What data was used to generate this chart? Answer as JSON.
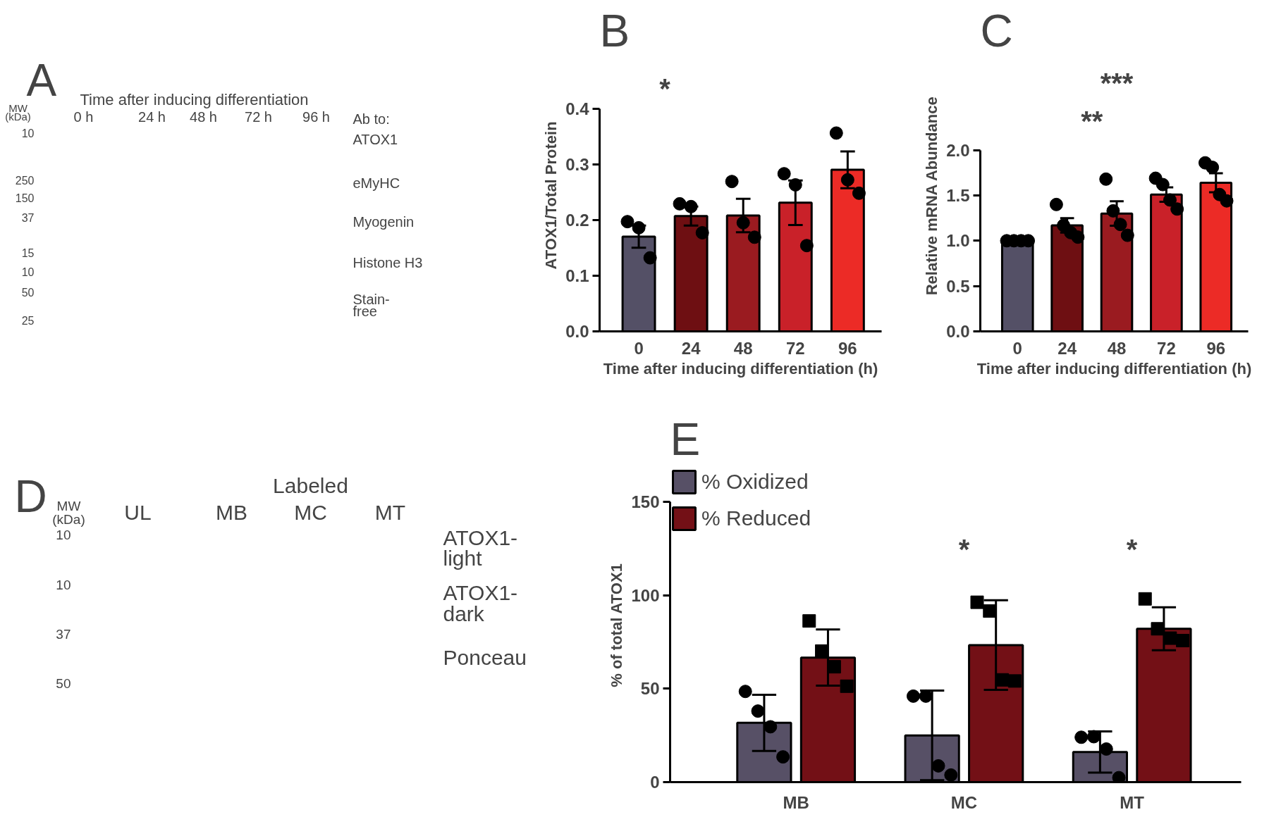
{
  "chart_data": [
    {
      "type": "other",
      "title": "A",
      "annotations": [
        "Time after inducing differentiation",
        "MW",
        "(kDa)",
        "0 h",
        "24 h",
        "48 h",
        "72 h",
        "96 h",
        "Ab to:",
        "ATOX1",
        "eMyHC",
        "Myogenin",
        "Histone H3",
        "Stain-",
        "free",
        "10",
        "250",
        "150",
        "37",
        "15",
        "10",
        "50",
        "25"
      ]
    },
    {
      "type": "bar",
      "title": "B",
      "categories": [
        "0",
        "24",
        "48",
        "72",
        "96"
      ],
      "xlabel": "Time after inducing differentiation (h)",
      "ylabel": "ATOX1/Total Protein",
      "ylim": [
        0,
        0.4
      ],
      "yticks": [
        {
          "value": 0,
          "label": "0.0"
        },
        0.1,
        0.2,
        0.3,
        0.4
      ],
      "annotations": [
        "*"
      ],
      "series": [
        {
          "type": "bar",
          "colors": [
            "#545066",
            "#6e0f12",
            "#9a1b20",
            "#c92129",
            "#ec2b26"
          ],
          "values": [
            0.17,
            0.207,
            0.208,
            0.231,
            0.29
          ],
          "errors": [
            0.02,
            0.017,
            0.03,
            0.04,
            0.033
          ]
        },
        {
          "type": "scatter",
          "color": "#000000",
          "marker": "circle",
          "x": [
            "0",
            "0",
            "0",
            "24",
            "24",
            "24",
            "48",
            "48",
            "48",
            "72",
            "72",
            "72",
            "96",
            "96",
            "96"
          ],
          "values": [
            0.197,
            0.186,
            0.132,
            0.229,
            0.224,
            0.177,
            0.269,
            0.195,
            0.169,
            0.283,
            0.263,
            0.154,
            0.356,
            0.272,
            0.248
          ]
        }
      ]
    },
    {
      "type": "bar",
      "title": "C",
      "categories": [
        "0",
        "24",
        "48",
        "72",
        "96"
      ],
      "xlabel": "Time after inducing differentiation (h)",
      "ylabel": "Relative mRNA Abundance",
      "ylim": [
        0,
        2
      ],
      "yticks": [
        {
          "value": 0,
          "label": "0.0"
        },
        0.5,
        {
          "value": 1,
          "label": "1.0"
        },
        1.5,
        {
          "value": 2,
          "label": "2.0"
        }
      ],
      "annotations": [
        "**",
        "***"
      ],
      "series": [
        {
          "type": "bar",
          "colors": [
            "#545066",
            "#6e0f12",
            "#9a1b20",
            "#c92129",
            "#ec2b26"
          ],
          "values": [
            1.0,
            1.17,
            1.3,
            1.51,
            1.64
          ],
          "errors": [
            null,
            0.08,
            0.135,
            0.08,
            0.105
          ]
        },
        {
          "type": "scatter",
          "color": "#000000",
          "marker": "circle",
          "x": [
            "0",
            "0",
            "0",
            "0",
            "24",
            "24",
            "24",
            "24",
            "48",
            "48",
            "48",
            "48",
            "72",
            "72",
            "72",
            "72",
            "96",
            "96",
            "96",
            "96"
          ],
          "values": [
            1.0,
            1.0,
            1.0,
            1.0,
            1.4,
            1.17,
            1.09,
            1.04,
            1.68,
            1.33,
            1.18,
            1.06,
            1.69,
            1.62,
            1.45,
            1.35,
            1.86,
            1.81,
            1.51,
            1.44
          ]
        }
      ]
    },
    {
      "type": "other",
      "title": "D",
      "annotations": [
        "Labeled",
        "MW",
        "(kDa)",
        "UL",
        "MB",
        "MC",
        "MT",
        "10",
        "10",
        "37",
        "50",
        "ATOX1-",
        "light",
        "ATOX1-",
        "dark",
        "Ponceau"
      ]
    },
    {
      "type": "bar",
      "title": "E",
      "categories": [
        "MB",
        "MC",
        "MT"
      ],
      "ylabel": "% of total ATOX1",
      "ylim": [
        0,
        150
      ],
      "yticks": [
        0,
        50,
        100,
        150
      ],
      "legend": "top left",
      "annotations": [
        "*",
        "*"
      ],
      "series": [
        {
          "type": "bar",
          "name": "% Oxidized",
          "color": "#575066",
          "values": [
            31.7,
            25,
            16.1
          ],
          "errors": [
            15,
            24,
            11
          ]
        },
        {
          "type": "bar",
          "name": "% Reduced",
          "color": "#731016",
          "values": [
            66.6,
            73.3,
            82
          ],
          "errors": [
            15,
            24,
            11.5
          ]
        },
        {
          "type": "scatter",
          "color": "#000000",
          "marker": "circle",
          "x": [
            "MB",
            "MB",
            "MB",
            "MB",
            "MC",
            "MC",
            "MC",
            "MC",
            "MT",
            "MT",
            "MT",
            "MT"
          ],
          "values": [
            48.5,
            38,
            29.6,
            13.5,
            46,
            46,
            8.7,
            3.8,
            24,
            24.3,
            17.7,
            2.4
          ]
        },
        {
          "type": "scatter",
          "color": "#000000",
          "marker": "square",
          "x": [
            "MB",
            "MB",
            "MB",
            "MB",
            "MC",
            "MC",
            "MC",
            "MC",
            "MT",
            "MT",
            "MT",
            "MT"
          ],
          "values": [
            86.2,
            70.1,
            61.7,
            51.3,
            96.2,
            91.5,
            54.7,
            54.1,
            98,
            82,
            77,
            75.7
          ]
        }
      ]
    }
  ]
}
